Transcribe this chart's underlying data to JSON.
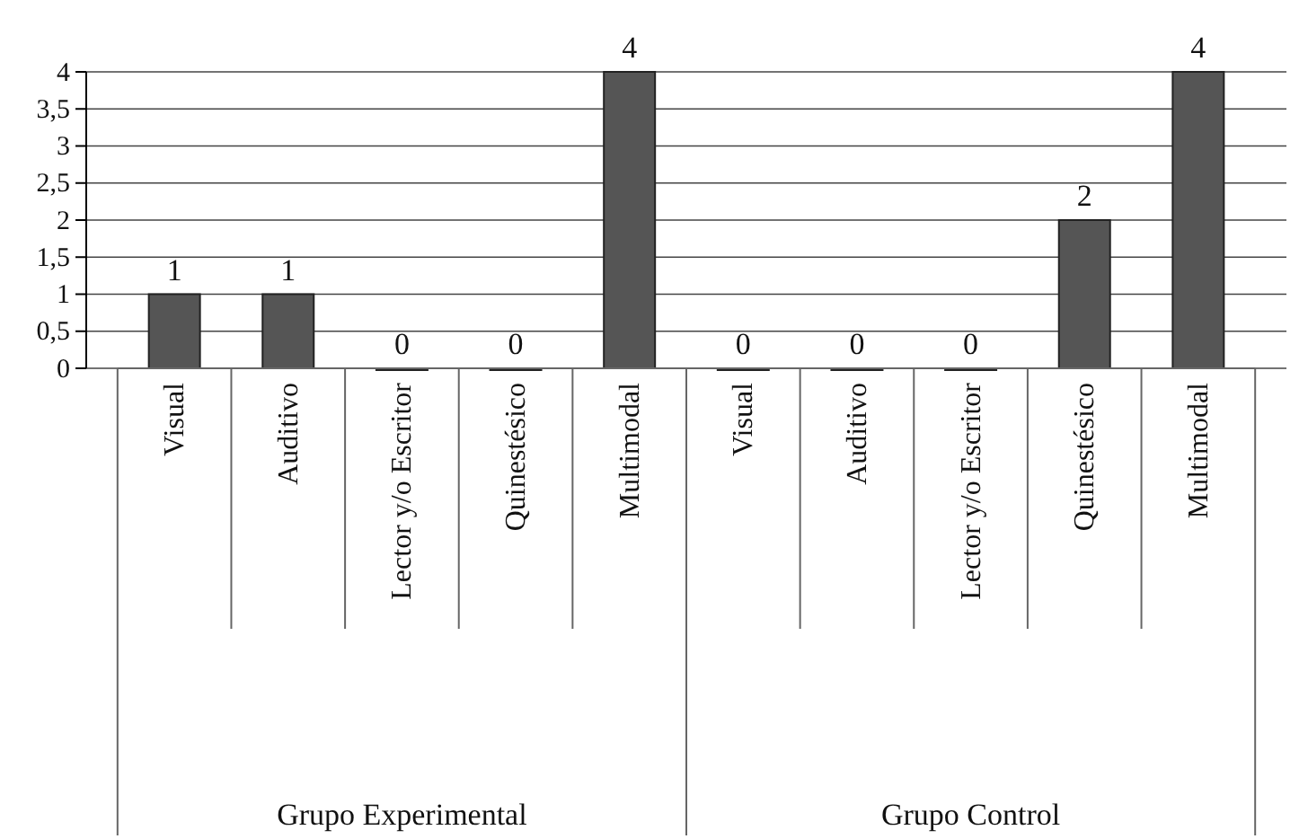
{
  "chart_data": {
    "type": "bar",
    "categories": [
      "Visual",
      "Auditivo",
      "Lector y/o Escritor",
      "Quinestésico",
      "Multimodal",
      "Visual",
      "Auditivo",
      "Lector y/o Escritor",
      "Quinestésico",
      "Multimodal"
    ],
    "values": [
      1,
      1,
      0,
      0,
      4,
      0,
      0,
      0,
      2,
      4
    ],
    "color": "#555555",
    "ylim": [
      0,
      4
    ],
    "yticks": [
      0,
      {
        "value": 0.5,
        "label": "0,5"
      },
      1,
      {
        "value": 1.5,
        "label": "1,5"
      },
      2,
      {
        "value": 2.5,
        "label": "2,5"
      },
      3,
      {
        "value": 3.5,
        "label": "3,5"
      },
      4
    ],
    "grid": "y",
    "data_labels": true,
    "annotations": [
      "Grupo Experimental",
      "Grupo Control"
    ]
  }
}
